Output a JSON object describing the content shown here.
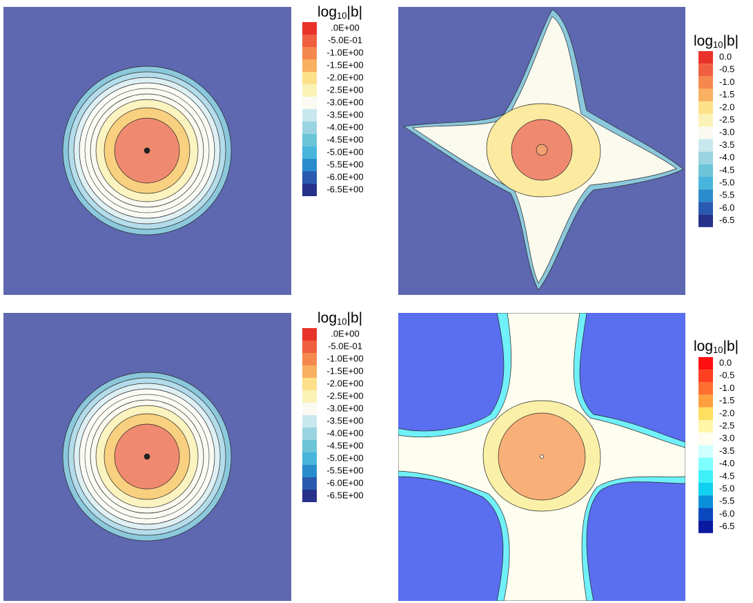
{
  "panels": [
    {
      "legend": {
        "title": {
          "base": "log",
          "sub": "10",
          "tail": "|b|"
        },
        "labels": [
          ".0E+00",
          "-5.0E-01",
          "-1.0E+00",
          "-1.5E+00",
          "-2.0E+00",
          "-2.5E+00",
          "-3.0E+00",
          "-3.5E+00",
          "-4.0E+00",
          "-4.5E+00",
          "-5.0E+00",
          "-5.5E+00",
          "-6.0E+00",
          "-6.5E+00"
        ],
        "colors": [
          "#e8322a",
          "#f06040",
          "#f5884e",
          "#f9b060",
          "#fde08a",
          "#fbf2b8",
          "#fafaf2",
          "#c8e8ee",
          "#9ad4e0",
          "#6cc4d8",
          "#48b6dc",
          "#2a8ccc",
          "#2a5ab0",
          "#26318a"
        ]
      }
    },
    {
      "legend": {
        "title": {
          "base": "log",
          "sub": "10",
          "tail": "|b|"
        },
        "labels": [
          "0.0",
          "-0.5",
          "-1.0",
          "-1.5",
          "-2.0",
          "-2.5",
          "-3.0",
          "-3.5",
          "-4.0",
          "-4.5",
          "-5.0",
          "-5.5",
          "-6.0",
          "-6.5"
        ],
        "colors": [
          "#e8322a",
          "#f06040",
          "#f5884e",
          "#f9b060",
          "#fde08a",
          "#fbf2b8",
          "#fafaf2",
          "#c8e8ee",
          "#9ad4e0",
          "#6cc4d8",
          "#48b6dc",
          "#2a8ccc",
          "#2a5ab0",
          "#26318a"
        ]
      }
    },
    {
      "legend": {
        "title": {
          "base": "log",
          "sub": "10",
          "tail": "|b|"
        },
        "labels": [
          ".0E+00",
          "-5.0E-01",
          "-1.0E+00",
          "-1.5E+00",
          "-2.0E+00",
          "-2.5E+00",
          "-3.0E+00",
          "-3.5E+00",
          "-4.0E+00",
          "-4.5E+00",
          "-5.0E+00",
          "-5.5E+00",
          "-6.0E+00",
          "-6.5E+00"
        ],
        "colors": [
          "#e8322a",
          "#f06040",
          "#f5884e",
          "#f9b060",
          "#fde08a",
          "#fbf2b8",
          "#fafaf2",
          "#c8e8ee",
          "#9ad4e0",
          "#6cc4d8",
          "#48b6dc",
          "#2a8ccc",
          "#2a5ab0",
          "#26318a"
        ]
      }
    },
    {
      "legend": {
        "title": {
          "base": "log",
          "sub": "10",
          "tail": "|b|"
        },
        "labels": [
          "0.0",
          "-0.5",
          "-1.0",
          "-1.5",
          "-2.0",
          "-2.5",
          "-3.0",
          "-3.5",
          "-4.0",
          "-4.5",
          "-5.0",
          "-5.5",
          "-6.0",
          "-6.5"
        ],
        "colors": [
          "#ff1010",
          "#ff4020",
          "#ff7030",
          "#ffa040",
          "#ffdf60",
          "#fff6a8",
          "#fdfdf0",
          "#d0ffff",
          "#80ffff",
          "#40f0f8",
          "#10d0f0",
          "#0890d8",
          "#0a48c0",
          "#0a1aa0"
        ]
      }
    }
  ]
}
